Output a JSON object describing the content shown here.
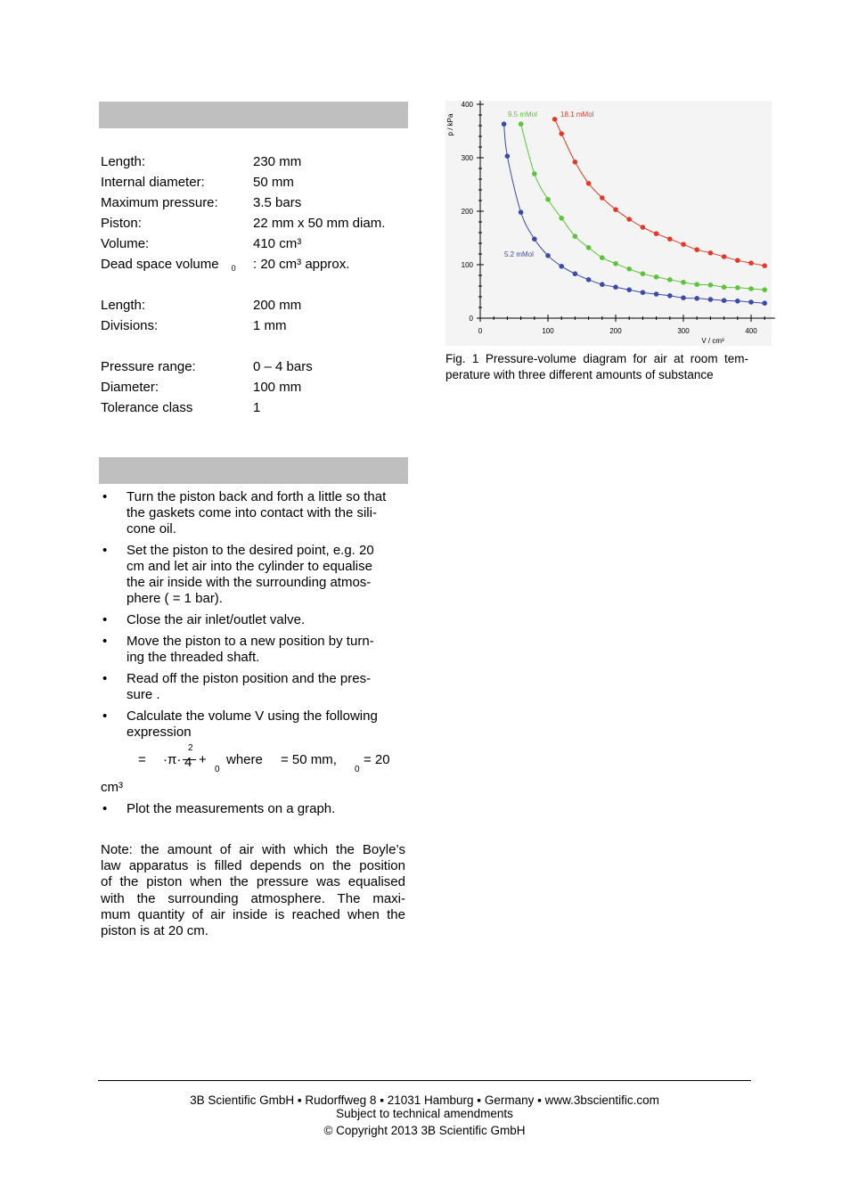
{
  "specs": {
    "groups": [
      {
        "rows": [
          {
            "label": "Length:",
            "value": "230 mm"
          },
          {
            "label": "Internal diameter:",
            "value": "50 mm"
          },
          {
            "label": "Maximum pressure:",
            "value": "3.5 bars"
          },
          {
            "label": "Piston:",
            "value": "22 mm x 50 mm diam."
          },
          {
            "label": "Volume:",
            "value": "410 cm³"
          },
          {
            "label": "Dead space volume",
            "subscript": "0",
            "value": ": 20 cm³ approx."
          }
        ]
      },
      {
        "rows": [
          {
            "label": "Length:",
            "value": "200 mm"
          },
          {
            "label": "Divisions:",
            "value": "1 mm"
          }
        ]
      },
      {
        "rows": [
          {
            "label": "Pressure range:",
            "value": "0 – 4 bars"
          },
          {
            "label": "Diameter:",
            "value": "100 mm"
          },
          {
            "label": "Tolerance class",
            "value": "1"
          }
        ]
      }
    ]
  },
  "bullets": [
    {
      "lines": [
        "Turn the piston back and forth a little so that",
        "the gaskets come into contact with the sili-",
        "cone oil."
      ]
    },
    {
      "lines": [
        "Set the piston to the desired point, e.g. 20",
        "cm and let air into the cylinder to equalise",
        "the air inside with the surrounding atmos-",
        "phere (    = 1 bar)."
      ]
    },
    {
      "lines": [
        "Close the air inlet/outlet valve."
      ]
    },
    {
      "lines": [
        "Move the piston to a new position by turn-",
        "ing the threaded shaft."
      ]
    },
    {
      "lines": [
        "Read off the piston position     and the pres-",
        "sure    ."
      ]
    },
    {
      "lines": [
        "Calculate the volume V using the following",
        "expression"
      ]
    },
    {
      "lines": [
        "Plot the measurements on a graph."
      ]
    }
  ],
  "bullet_symbol": "•",
  "formula": {
    "eq": "=",
    "pi": "·π·",
    "exp": "2",
    "den": "4",
    "plus": "+",
    "sub": "0",
    "where": "where",
    "d": "= 50 mm,",
    "sub2": "0",
    "v0": "= 20",
    "unit": "cm³"
  },
  "note": {
    "lines": [
      "Note: the amount of air with which the Boyle’s",
      "law apparatus is filled depends on the position",
      "of the piston when the pressure was equalised",
      "with the surrounding atmosphere. The maxi-",
      "mum quantity of air inside is reached when the",
      "piston is at 20 cm."
    ]
  },
  "caption": {
    "lines": [
      "Fig. 1 Pressure-volume diagram for air at room tem-",
      "perature with three different amounts of substance"
    ]
  },
  "footer": {
    "lines": [
      "3B Scientific GmbH ▪ Rudorffweg 8 ▪ 21031 Hamburg ▪ Germany ▪ www.3bscientific.com",
      "Subject to technical amendments",
      "© Copyright 2013 3B Scientific GmbH"
    ]
  },
  "chart_data": {
    "type": "line",
    "x_label": "V / cm³",
    "y_label": "p / kPa",
    "xlim": [
      0,
      430
    ],
    "ylim": [
      0,
      400
    ],
    "xticks": [
      0,
      100,
      200,
      300,
      400
    ],
    "yticks": [
      0,
      100,
      200,
      300,
      400
    ],
    "series": [
      {
        "name": "5.2 mMol",
        "color": "#3d4ba6",
        "x": [
          35,
          40,
          60,
          80,
          100,
          120,
          140,
          160,
          180,
          200,
          220,
          240,
          260,
          280,
          300,
          320,
          340,
          360,
          380,
          400,
          420
        ],
        "values": [
          363,
          303,
          198,
          148,
          117,
          97,
          83,
          72,
          63,
          58,
          53,
          48,
          45,
          42,
          38,
          37,
          35,
          33,
          32,
          30,
          28
        ]
      },
      {
        "name": "9.5 mMol",
        "color": "#5cc43a",
        "x": [
          60,
          80,
          100,
          120,
          140,
          160,
          180,
          200,
          220,
          240,
          260,
          280,
          300,
          320,
          340,
          360,
          380,
          400,
          420
        ],
        "values": [
          363,
          270,
          222,
          187,
          153,
          132,
          113,
          102,
          92,
          83,
          77,
          72,
          67,
          63,
          62,
          58,
          57,
          55,
          53
        ]
      },
      {
        "name": "18.1 mMol",
        "color": "#e23a2a",
        "x": [
          110,
          120,
          140,
          160,
          180,
          200,
          220,
          240,
          260,
          280,
          300,
          320,
          340,
          360,
          380,
          400,
          420
        ],
        "values": [
          372,
          345,
          292,
          252,
          225,
          203,
          185,
          170,
          158,
          148,
          138,
          128,
          122,
          115,
          108,
          103,
          98
        ]
      }
    ]
  }
}
